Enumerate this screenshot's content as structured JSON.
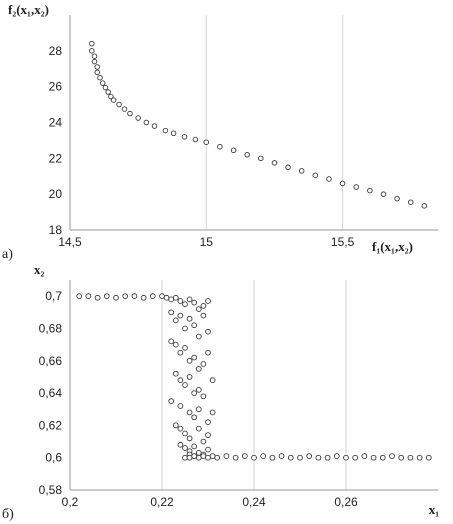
{
  "chart_data": [
    {
      "type": "scatter",
      "panel_label": "а)",
      "xlabel": "f₁(x₁,x₂)",
      "ylabel": "f₂(x₁,x₂)",
      "xlim": [
        14.5,
        15.85
      ],
      "ylim": [
        18,
        30
      ],
      "xticks": [
        14.5,
        15,
        15.5
      ],
      "xtick_labels": [
        "14,5",
        "15",
        "15,5"
      ],
      "yticks": [
        18,
        20,
        22,
        24,
        26,
        28
      ],
      "ytick_labels": [
        "18",
        "20",
        "22",
        "24",
        "26",
        "28"
      ],
      "grid": "vertical",
      "series": [
        {
          "x": [
            14.58,
            14.58,
            14.59,
            14.59,
            14.6,
            14.6,
            14.61,
            14.62,
            14.63,
            14.64,
            14.65,
            14.66,
            14.68,
            14.7,
            14.72,
            14.75,
            14.78,
            14.81,
            14.85,
            14.88,
            14.92,
            14.96,
            15.0,
            15.05,
            15.1,
            15.15,
            15.2,
            15.25,
            15.3,
            15.35,
            15.4,
            15.45,
            15.5,
            15.55,
            15.6,
            15.65,
            15.7,
            15.75,
            15.8
          ],
          "y": [
            28.4,
            28.0,
            27.7,
            27.4,
            27.1,
            26.8,
            26.5,
            26.2,
            25.95,
            25.7,
            25.45,
            25.25,
            25.0,
            24.75,
            24.5,
            24.25,
            24.0,
            23.8,
            23.55,
            23.4,
            23.2,
            23.05,
            22.9,
            22.65,
            22.45,
            22.2,
            22.0,
            21.75,
            21.5,
            21.3,
            21.05,
            20.85,
            20.6,
            20.4,
            20.2,
            20.0,
            19.75,
            19.55,
            19.35
          ]
        }
      ]
    },
    {
      "type": "scatter",
      "panel_label": "б)",
      "xlabel": "x₁",
      "ylabel": "x₂",
      "xlim": [
        0.2,
        0.28
      ],
      "ylim": [
        0.58,
        0.71
      ],
      "xticks": [
        0.2,
        0.22,
        0.24,
        0.26
      ],
      "xtick_labels": [
        "0,2",
        "0,22",
        "0,24",
        "0,26"
      ],
      "yticks": [
        0.58,
        0.6,
        0.62,
        0.64,
        0.66,
        0.68,
        0.7
      ],
      "ytick_labels": [
        "0,58",
        "0,6",
        "0,62",
        "0,64",
        "0,66",
        "0,68",
        "0,7"
      ],
      "grid": "vertical",
      "series": [
        {
          "x": [
            0.202,
            0.204,
            0.206,
            0.208,
            0.21,
            0.212,
            0.214,
            0.216,
            0.218,
            0.22,
            0.221,
            0.222,
            0.223,
            0.224,
            0.225,
            0.226,
            0.227,
            0.228,
            0.229,
            0.23,
            0.222,
            0.223,
            0.224,
            0.225,
            0.226,
            0.227,
            0.228,
            0.229,
            0.23,
            0.222,
            0.223,
            0.224,
            0.225,
            0.226,
            0.227,
            0.228,
            0.229,
            0.23,
            0.223,
            0.224,
            0.225,
            0.226,
            0.227,
            0.228,
            0.229,
            0.231,
            0.222,
            0.224,
            0.226,
            0.227,
            0.228,
            0.23,
            0.231,
            0.223,
            0.224,
            0.225,
            0.226,
            0.228,
            0.229,
            0.23,
            0.224,
            0.225,
            0.226,
            0.227,
            0.228,
            0.23,
            0.225,
            0.226,
            0.227,
            0.229,
            0.226,
            0.227,
            0.228,
            0.229,
            0.23,
            0.231,
            0.232,
            0.234,
            0.236,
            0.238,
            0.24,
            0.242,
            0.244,
            0.246,
            0.248,
            0.25,
            0.252,
            0.254,
            0.256,
            0.258,
            0.26,
            0.262,
            0.264,
            0.266,
            0.268,
            0.27,
            0.272,
            0.274,
            0.276,
            0.278
          ],
          "y": [
            0.7,
            0.7,
            0.699,
            0.7,
            0.699,
            0.7,
            0.7,
            0.699,
            0.7,
            0.7,
            0.699,
            0.698,
            0.699,
            0.697,
            0.695,
            0.698,
            0.696,
            0.692,
            0.694,
            0.697,
            0.69,
            0.685,
            0.688,
            0.68,
            0.686,
            0.682,
            0.675,
            0.688,
            0.678,
            0.672,
            0.67,
            0.665,
            0.668,
            0.66,
            0.662,
            0.655,
            0.658,
            0.665,
            0.652,
            0.648,
            0.645,
            0.65,
            0.64,
            0.642,
            0.638,
            0.648,
            0.635,
            0.632,
            0.628,
            0.625,
            0.63,
            0.622,
            0.628,
            0.62,
            0.618,
            0.615,
            0.612,
            0.618,
            0.61,
            0.614,
            0.608,
            0.606,
            0.604,
            0.607,
            0.603,
            0.605,
            0.6,
            0.602,
            0.601,
            0.602,
            0.6,
            0.601,
            0.6,
            0.601,
            0.6,
            0.601,
            0.6,
            0.601,
            0.6,
            0.601,
            0.6,
            0.601,
            0.6,
            0.601,
            0.6,
            0.6,
            0.601,
            0.6,
            0.6,
            0.601,
            0.6,
            0.6,
            0.601,
            0.6,
            0.6,
            0.601,
            0.6,
            0.6,
            0.6,
            0.6
          ]
        }
      ]
    }
  ]
}
